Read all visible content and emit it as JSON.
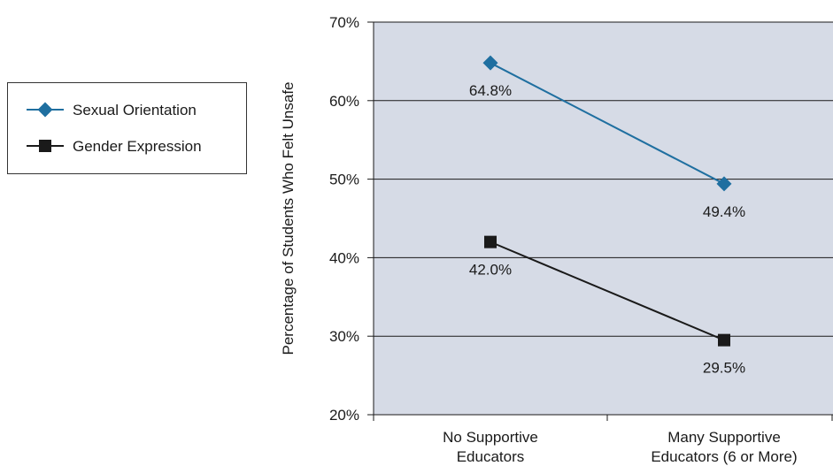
{
  "chart_data": {
    "type": "line",
    "title": "",
    "xlabel": "",
    "ylabel": "Percentage of Students Who Felt Unsafe",
    "categories": [
      [
        "No Supportive",
        "Educators"
      ],
      [
        "Many Supportive",
        "Educators (6 or More)"
      ]
    ],
    "ylim": [
      20,
      70
    ],
    "yticks": [
      20,
      30,
      40,
      50,
      60,
      70
    ],
    "ytick_labels": [
      "20%",
      "30%",
      "40%",
      "50%",
      "60%",
      "70%"
    ],
    "grid": true,
    "legend_position": "left",
    "series": [
      {
        "name": "Sexual Orientation",
        "values": [
          64.8,
          49.4
        ],
        "labels": [
          "64.8%",
          "49.4%"
        ],
        "marker": "diamond",
        "color": "#1f6fa0"
      },
      {
        "name": "Gender Expression",
        "values": [
          42.0,
          29.5
        ],
        "labels": [
          "42.0%",
          "29.5%"
        ],
        "marker": "square",
        "color": "#1a1a1a"
      }
    ],
    "plot_background": "#d6dbe6"
  }
}
